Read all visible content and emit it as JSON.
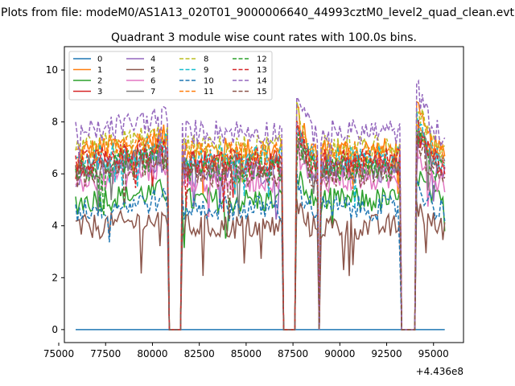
{
  "figure": {
    "suptitle": "Plots from file: modeM0/AS1A13_020T01_9000006640_44993cztM0_level2_quad_clean.evt"
  },
  "chart_data": {
    "type": "line",
    "title": "Quadrant 3 module wise count rates with 100.0s bins.",
    "xlabel": "",
    "ylabel": "",
    "x_offset_label": "+4.436e8",
    "xlim": [
      75300,
      96600
    ],
    "ylim": [
      -0.5,
      10.9
    ],
    "x_ticks": [
      75000,
      77500,
      80000,
      82500,
      85000,
      87500,
      90000,
      92500,
      95000
    ],
    "x_tick_labels": [
      "75000",
      "77500",
      "80000",
      "82500",
      "85000",
      "87500",
      "90000",
      "92500",
      "95000"
    ],
    "y_ticks": [
      0,
      2,
      4,
      6,
      8,
      10
    ],
    "y_tick_labels": [
      "0",
      "2",
      "4",
      "6",
      "8",
      "10"
    ],
    "legend": {
      "position": "upper-left",
      "columns": 4
    },
    "series": [
      {
        "name": "0",
        "color": "#1f77b4",
        "style": "solid",
        "base": 0,
        "baseline_only": true
      },
      {
        "name": "1",
        "color": "#ff7f0e",
        "style": "solid",
        "base": 6.8
      },
      {
        "name": "2",
        "color": "#2ca02c",
        "style": "solid",
        "base": 4.9
      },
      {
        "name": "3",
        "color": "#d62728",
        "style": "solid",
        "base": 6.3
      },
      {
        "name": "4",
        "color": "#9467bd",
        "style": "solid",
        "base": 6.0
      },
      {
        "name": "5",
        "color": "#8c564b",
        "style": "solid",
        "base": 3.9
      },
      {
        "name": "6",
        "color": "#e377c2",
        "style": "solid",
        "base": 5.7
      },
      {
        "name": "7",
        "color": "#7f7f7f",
        "style": "solid",
        "base": 6.2
      },
      {
        "name": "8",
        "color": "#bcbd22",
        "style": "dashed",
        "base": 6.9
      },
      {
        "name": "9",
        "color": "#17becf",
        "style": "dashed",
        "base": 6.5
      },
      {
        "name": "10",
        "color": "#1f77b4",
        "style": "dashed",
        "base": 4.6
      },
      {
        "name": "11",
        "color": "#ff7f0e",
        "style": "dashed",
        "base": 6.7
      },
      {
        "name": "12",
        "color": "#2ca02c",
        "style": "dashed",
        "base": 6.1
      },
      {
        "name": "13",
        "color": "#d62728",
        "style": "dashed",
        "base": 6.4
      },
      {
        "name": "14",
        "color": "#9467bd",
        "style": "dashed",
        "base": 7.5
      },
      {
        "name": "15",
        "color": "#8c564b",
        "style": "dashed",
        "base": 5.9
      }
    ],
    "segments": [
      {
        "x0": 75900,
        "x1": 80800,
        "shape": "rise"
      },
      {
        "x0": 81600,
        "x1": 86900,
        "shape": "flat"
      },
      {
        "x0": 87700,
        "x1": 88800,
        "shape": "fall"
      },
      {
        "x0": 89000,
        "x1": 93200,
        "shape": "flat"
      },
      {
        "x0": 94100,
        "x1": 95600,
        "shape": "fall"
      }
    ],
    "zero_gaps": [
      {
        "x0": 81000,
        "x1": 81500
      },
      {
        "x0": 87100,
        "x1": 87600
      },
      {
        "x0": 88850,
        "x1": 88950
      },
      {
        "x0": 93300,
        "x1": 94000
      }
    ],
    "data_x_range": [
      75900,
      95600
    ]
  }
}
